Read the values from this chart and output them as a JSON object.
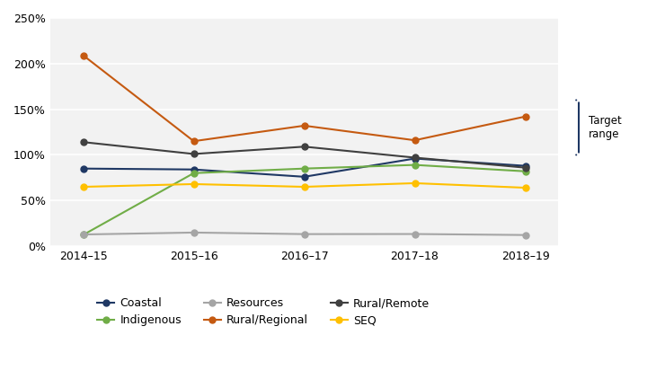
{
  "years": [
    "2014–15",
    "2015–16",
    "2016–17",
    "2017–18",
    "2018–19"
  ],
  "series": {
    "Coastal": {
      "values": [
        0.85,
        0.84,
        0.76,
        0.96,
        0.88
      ],
      "color": "#1f3864",
      "marker": "o"
    },
    "Indigenous": {
      "values": [
        0.124,
        0.8,
        0.85,
        0.89,
        0.82
      ],
      "color": "#70ad47",
      "marker": "o"
    },
    "Resources": {
      "values": [
        0.128,
        0.149,
        0.132,
        0.133,
        0.122
      ],
      "color": "#a5a5a5",
      "marker": "o"
    },
    "Rural/Regional": {
      "values": [
        2.09,
        1.15,
        1.32,
        1.16,
        1.42
      ],
      "color": "#c55a11",
      "marker": "o"
    },
    "Rural/Remote": {
      "values": [
        1.14,
        1.01,
        1.09,
        0.97,
        0.86
      ],
      "color": "#404040",
      "marker": "o"
    },
    "SEQ": {
      "values": [
        0.65,
        0.68,
        0.65,
        0.69,
        0.64
      ],
      "color": "#ffc000",
      "marker": "o"
    }
  },
  "target_range": [
    1.0,
    1.6
  ],
  "target_label": "Target\nrange",
  "ylim": [
    0.0,
    2.5
  ],
  "yticks": [
    0.0,
    0.5,
    1.0,
    1.5,
    2.0,
    2.5
  ],
  "ytick_labels": [
    "0%",
    "50%",
    "100%",
    "150%",
    "200%",
    "250%"
  ],
  "plot_background": "#f2f2f2",
  "grid_color": "#ffffff",
  "target_bracket_color": "#1f3864",
  "legend_order": [
    "Coastal",
    "Indigenous",
    "Resources",
    "Rural/Regional",
    "Rural/Remote",
    "SEQ"
  ]
}
